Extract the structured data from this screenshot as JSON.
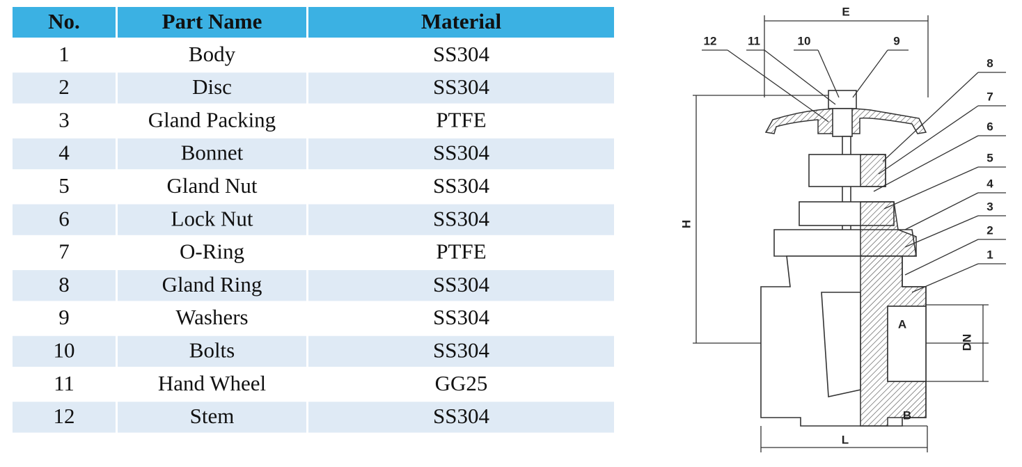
{
  "table": {
    "headers": [
      "No.",
      "Part Name",
      "Material"
    ],
    "rows": [
      [
        1,
        "Body",
        "SS304"
      ],
      [
        2,
        "Disc",
        "SS304"
      ],
      [
        3,
        "Gland Packing",
        "PTFE"
      ],
      [
        4,
        "Bonnet",
        "SS304"
      ],
      [
        5,
        "Gland Nut",
        "SS304"
      ],
      [
        6,
        "Lock Nut",
        "SS304"
      ],
      [
        7,
        "O-Ring",
        "PTFE"
      ],
      [
        8,
        "Gland Ring",
        "SS304"
      ],
      [
        9,
        "Washers",
        "SS304"
      ],
      [
        10,
        "Bolts",
        "SS304"
      ],
      [
        11,
        "Hand Wheel",
        "GG25"
      ],
      [
        12,
        "Stem",
        "SS304"
      ]
    ]
  },
  "diagram": {
    "callouts": [
      "12",
      "11",
      "10",
      "9",
      "8",
      "7",
      "6",
      "5",
      "4",
      "3",
      "2",
      "1"
    ],
    "dimensions": {
      "E": "E",
      "H": "H",
      "DN": "DN",
      "A": "A",
      "B": "B",
      "L": "L"
    }
  }
}
